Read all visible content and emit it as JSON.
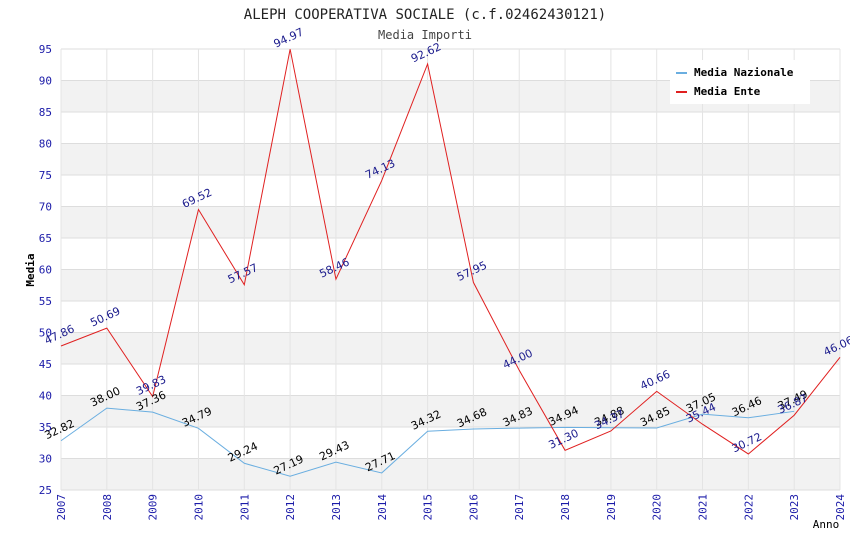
{
  "chart_data": {
    "type": "line",
    "title": "ALEPH COOPERATIVA SOCIALE (c.f.02462430121)",
    "subtitle": "Media Importi",
    "xlabel": "Anno",
    "ylabel": "Media",
    "ylim": [
      25,
      95
    ],
    "yticks": [
      25,
      30,
      35,
      40,
      45,
      50,
      55,
      60,
      65,
      70,
      75,
      80,
      85,
      90,
      95
    ],
    "categories": [
      "2007",
      "2008",
      "2009",
      "2010",
      "2011",
      "2012",
      "2013",
      "2014",
      "2015",
      "2016",
      "2017",
      "2018",
      "2019",
      "2020",
      "2021",
      "2022",
      "2023",
      "2024"
    ],
    "legend_position": "top-right",
    "series": [
      {
        "name": "Media Nazionale",
        "color": "#6aaee0",
        "label_color": "#000000",
        "values": [
          32.82,
          38.0,
          37.36,
          34.79,
          29.24,
          27.19,
          29.43,
          27.71,
          34.32,
          34.68,
          34.83,
          34.94,
          34.88,
          34.85,
          37.05,
          36.46,
          37.49,
          null
        ],
        "labels": [
          "32.82",
          "38.00",
          "37.36",
          "34.79",
          "29.24",
          "27.19",
          "29.43",
          "27.71",
          "34.32",
          "34.68",
          "34.83",
          "34.94",
          "34.88",
          "34.85",
          "37.05",
          "36.46",
          "37.49",
          ""
        ]
      },
      {
        "name": "Media Ente",
        "color": "#e02020",
        "label_color": "#1a1a8c",
        "values": [
          47.86,
          50.69,
          39.83,
          69.52,
          57.57,
          94.97,
          58.46,
          74.13,
          92.62,
          57.95,
          44.0,
          31.3,
          34.37,
          40.66,
          35.44,
          30.72,
          36.87,
          46.06
        ],
        "labels": [
          "47.86",
          "50.69",
          "39.83",
          "69.52",
          "57.57",
          "94.97",
          "58.46",
          "74.13",
          "92.62",
          "57.95",
          "44.00",
          "31.30",
          "34.37",
          "40.66",
          "35.44",
          "30.72",
          "36.87",
          "46.06"
        ]
      }
    ]
  }
}
